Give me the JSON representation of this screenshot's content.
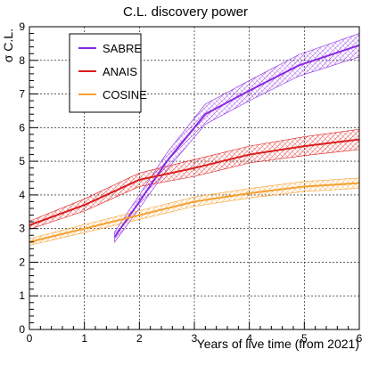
{
  "chart_data": {
    "type": "line",
    "title": "C.L. discovery power",
    "xlabel": "Years of live time (from 2021)",
    "ylabel": "σ C.L.",
    "xlim": [
      0,
      6
    ],
    "ylim": [
      0,
      9
    ],
    "x_ticks": [
      "0",
      "1",
      "2",
      "3",
      "4",
      "5",
      "6"
    ],
    "y_ticks": [
      "0",
      "1",
      "2",
      "3",
      "4",
      "5",
      "6",
      "7",
      "8",
      "9"
    ],
    "grid": true,
    "legend_position": "top-left",
    "series": [
      {
        "name": "SABRE",
        "color": "#8a2be2",
        "x": [
          1.55,
          2.0,
          2.5,
          3.2,
          4.0,
          4.9,
          6.0
        ],
        "y": [
          2.75,
          3.8,
          5.0,
          6.4,
          7.1,
          7.85,
          8.45
        ],
        "band_half_width": [
          0.15,
          0.2,
          0.25,
          0.3,
          0.3,
          0.32,
          0.35
        ]
      },
      {
        "name": "ANAIS",
        "color": "#dd1c1c",
        "x": [
          0.0,
          1.0,
          2.0,
          3.0,
          4.0,
          5.0,
          6.0
        ],
        "y": [
          3.1,
          3.7,
          4.45,
          4.8,
          5.2,
          5.45,
          5.65
        ],
        "band_half_width": [
          0.12,
          0.18,
          0.2,
          0.25,
          0.25,
          0.28,
          0.3
        ]
      },
      {
        "name": "COSINE",
        "color": "#f5a030",
        "x": [
          0.0,
          1.0,
          2.0,
          3.0,
          4.0,
          5.0,
          6.0
        ],
        "y": [
          2.6,
          3.0,
          3.4,
          3.8,
          4.05,
          4.25,
          4.35
        ],
        "band_half_width": [
          0.1,
          0.12,
          0.13,
          0.14,
          0.14,
          0.15,
          0.15
        ]
      }
    ]
  }
}
